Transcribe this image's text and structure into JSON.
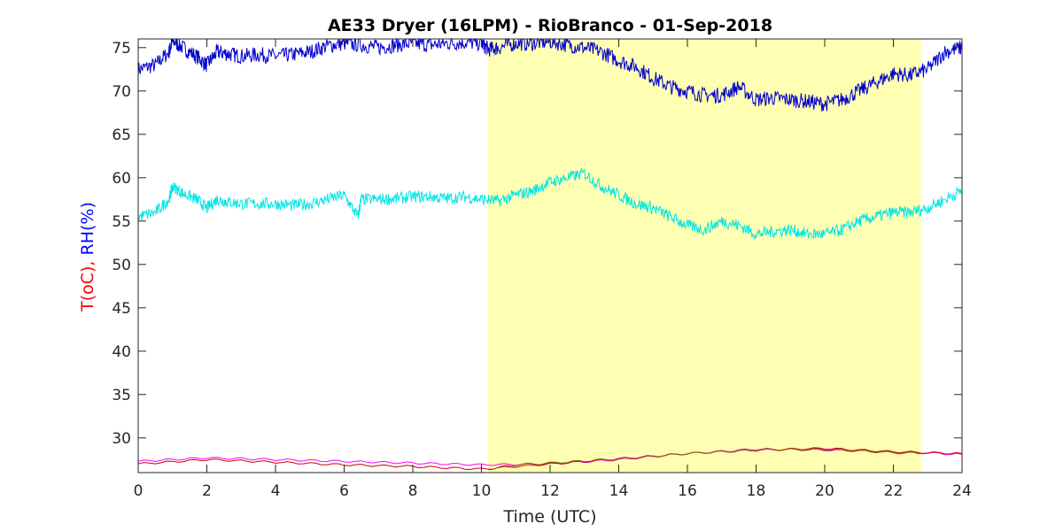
{
  "chart_data": {
    "type": "line",
    "title": "AE33 Dryer (16LPM)  - RioBranco - 01-Sep-2018",
    "xlabel": "Time (UTC)",
    "ylabel_parts": [
      {
        "text": "T(oC), ",
        "color": "#ff0000"
      },
      {
        "text": "RH(%)",
        "color": "#0000ff"
      }
    ],
    "xlim": [
      0,
      24
    ],
    "ylim": [
      26,
      76
    ],
    "xticks": [
      0,
      2,
      4,
      6,
      8,
      10,
      12,
      14,
      16,
      18,
      20,
      22,
      24
    ],
    "yticks": [
      30,
      35,
      40,
      45,
      50,
      55,
      60,
      65,
      70,
      75
    ],
    "grid": false,
    "highlight_band": {
      "x_start": 10.2,
      "x_end": 22.8,
      "color": "#ffffb3"
    },
    "series": [
      {
        "color": "#0000cc",
        "x": [
          0,
          0.5,
          0.9,
          1.0,
          1.3,
          1.7,
          2.0,
          2.3,
          2.6,
          3.0,
          3.5,
          4.0,
          4.5,
          5.0,
          5.5,
          6.0,
          6.5,
          7.0,
          7.5,
          8.0,
          8.5,
          9.0,
          9.5,
          10.0,
          10.2,
          10.5,
          11.0,
          11.5,
          12.0,
          12.5,
          13.0,
          13.5,
          14.0,
          14.5,
          15.0,
          15.5,
          16.0,
          16.5,
          17.0,
          17.5,
          18.0,
          18.5,
          19.0,
          19.5,
          20.0,
          20.5,
          21.0,
          21.5,
          22.0,
          22.5,
          23.0,
          23.5,
          24.0
        ],
        "y": [
          72.5,
          73.0,
          74.5,
          75.8,
          75.0,
          74.0,
          73.0,
          74.5,
          74.3,
          74.0,
          74.2,
          74.0,
          74.2,
          74.5,
          75.2,
          75.5,
          75.3,
          75.0,
          75.3,
          75.5,
          75.3,
          75.5,
          75.6,
          75.5,
          74.8,
          75.0,
          75.5,
          75.5,
          75.7,
          75.3,
          75.0,
          74.5,
          73.5,
          72.8,
          71.5,
          70.5,
          70.0,
          69.5,
          69.5,
          70.5,
          69.0,
          69.2,
          69.0,
          68.8,
          68.5,
          69.0,
          70.0,
          71.0,
          72.0,
          71.8,
          72.5,
          74.5,
          75.0
        ]
      },
      {
        "color": "#00e5e5",
        "x": [
          0,
          0.5,
          0.9,
          1.0,
          1.3,
          1.7,
          2.0,
          2.3,
          2.6,
          3.0,
          3.5,
          4.0,
          4.5,
          5.0,
          5.5,
          6.0,
          6.4,
          6.5,
          7.0,
          7.5,
          8.0,
          8.5,
          9.0,
          9.5,
          10.0,
          10.5,
          11.0,
          11.5,
          12.0,
          12.5,
          13.0,
          13.5,
          14.0,
          14.5,
          15.0,
          15.5,
          16.0,
          16.5,
          17.0,
          17.5,
          18.0,
          18.5,
          19.0,
          19.5,
          20.0,
          20.5,
          21.0,
          21.5,
          22.0,
          22.5,
          23.0,
          23.5,
          24.0
        ],
        "y": [
          55.5,
          56.0,
          57.5,
          59.0,
          58.2,
          57.5,
          56.5,
          57.5,
          57.2,
          57.0,
          57.0,
          57.0,
          56.8,
          57.0,
          57.5,
          58.0,
          55.5,
          57.5,
          57.5,
          57.6,
          57.8,
          57.8,
          57.6,
          57.8,
          57.5,
          57.3,
          58.0,
          58.5,
          59.5,
          60.0,
          60.5,
          59.0,
          58.0,
          57.0,
          56.5,
          55.5,
          54.5,
          54.0,
          55.0,
          54.5,
          53.5,
          53.8,
          54.0,
          53.5,
          53.5,
          54.0,
          55.0,
          55.5,
          56.0,
          56.0,
          56.5,
          57.5,
          58.5
        ]
      },
      {
        "color": "#ff00ff",
        "x": [
          0,
          2,
          4,
          6,
          8,
          10,
          12,
          14,
          16,
          18,
          20,
          22,
          24
        ],
        "y": [
          27.3,
          27.7,
          27.5,
          27.3,
          27.1,
          26.9,
          27.0,
          27.5,
          28.2,
          28.7,
          28.6,
          28.4,
          28.1
        ]
      },
      {
        "color": "#cc0000",
        "x": [
          0,
          2,
          4,
          6,
          8,
          10,
          12,
          14,
          16,
          18,
          20,
          22,
          24
        ],
        "y": [
          27.0,
          27.5,
          27.2,
          26.9,
          26.7,
          26.4,
          27.0,
          27.6,
          28.2,
          28.6,
          28.8,
          28.4,
          28.2
        ]
      },
      {
        "color": "#7a6a00",
        "x": [
          10.2,
          11,
          12,
          14,
          16,
          18,
          20,
          22,
          22.8
        ],
        "y": [
          26.4,
          26.9,
          27.1,
          27.6,
          28.2,
          28.6,
          28.7,
          28.3,
          28.2
        ]
      }
    ]
  }
}
